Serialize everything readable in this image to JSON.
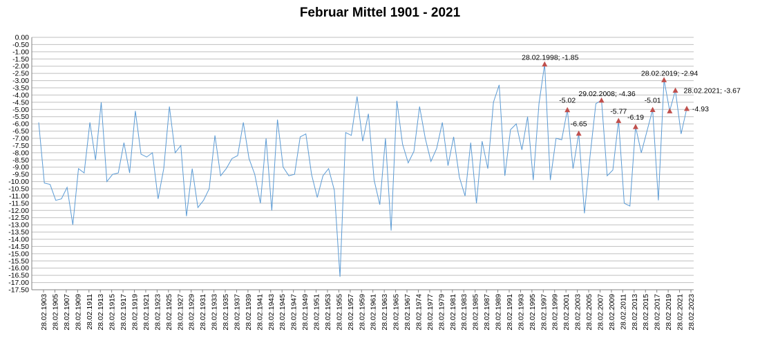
{
  "chart_data": {
    "type": "line",
    "title": "Februar Mittel 1901 - 2021",
    "xlabel": "",
    "ylabel": "",
    "ylim": [
      -17.5,
      0
    ],
    "ytick_labels": [
      "0.00",
      "-0.50",
      "-1.00",
      "-1.50",
      "-2.00",
      "-2.50",
      "-3.00",
      "-3.50",
      "-4.00",
      "-4.50",
      "-5.00",
      "-5.50",
      "-6.00",
      "-6.50",
      "-7.00",
      "-7.50",
      "-8.00",
      "-8.50",
      "-9.00",
      "-9.50",
      "-10.00",
      "-10.50",
      "-11.00",
      "-11.50",
      "-12.00",
      "-12.50",
      "-13.00",
      "-13.50",
      "-14.00",
      "-14.50",
      "-15.00",
      "-15.50",
      "-16.00",
      "-16.50",
      "-17.00",
      "-17.50"
    ],
    "xtick_labels": [
      "28.02.1903",
      "28.02.1905",
      "28.02.1907",
      "28.02.1909",
      "28.02.1911",
      "28.02.1913",
      "28.02.1915",
      "28.02.1917",
      "28.02.1919",
      "28.02.1921",
      "28.02.1923",
      "28.02.1925",
      "28.02.1927",
      "28.02.1929",
      "28.02.1931",
      "28.02.1933",
      "28.02.1935",
      "28.02.1937",
      "28.02.1939",
      "28.02.1941",
      "28.02.1943",
      "28.02.1945",
      "28.02.1947",
      "28.02.1949",
      "28.02.1951",
      "28.02.1953",
      "28.02.1955",
      "28.02.1957",
      "28.02.1959",
      "28.02.1961",
      "28.02.1963",
      "28.02.1965",
      "28.02.1967",
      "28.02.1974",
      "28.02.1977",
      "28.02.1979",
      "28.02.1981",
      "28.02.1983",
      "28.02.1985",
      "28.02.1987",
      "28.02.1989",
      "28.02.1991",
      "28.02.1993",
      "28.02.1995",
      "28.02.1997",
      "28.02.1999",
      "28.02.2001",
      "28.02.2003",
      "28.02.2005",
      "28.02.2007",
      "28.02.2009",
      "28.02.2011",
      "28.02.2013",
      "28.02.2015",
      "28.02.2017",
      "28.02.2019",
      "28.02.2021",
      "28.02.2023"
    ],
    "grid": true,
    "legend": "none",
    "line_color": "#5b9bd5",
    "marker_color": "#c0504d",
    "series": [
      {
        "values": [
          -5.9,
          -10.1,
          -10.2,
          -11.3,
          -11.2,
          -10.4,
          -13.0,
          -9.1,
          -9.4,
          -5.9,
          -8.5,
          -4.5,
          -10.0,
          -9.5,
          -9.4,
          -7.3,
          -9.4,
          -5.1,
          -8.1,
          -8.3,
          -8.0,
          -11.2,
          -9.1,
          -4.8,
          -8.0,
          -7.5,
          -12.4,
          -9.1,
          -11.8,
          -11.3,
          -10.5,
          -6.8,
          -9.6,
          -9.1,
          -8.4,
          -8.2,
          -5.9,
          -8.4,
          -9.5,
          -11.5,
          -7.0,
          -12.0,
          -5.7,
          -9.0,
          -9.6,
          -9.5,
          -6.9,
          -6.7,
          -9.5,
          -11.1,
          -9.6,
          -9.1,
          -10.6,
          -16.6,
          -6.6,
          -6.8,
          -4.1,
          -7.2,
          -5.3,
          -9.9,
          -11.6,
          -7.0,
          -13.4,
          -4.4,
          -7.4,
          -8.7,
          -7.9,
          -4.8,
          -7.0,
          -8.6,
          -7.7,
          -5.9,
          -8.9,
          -6.9,
          -9.7,
          -11.0,
          -7.3,
          -11.5,
          -7.2,
          -9.1,
          -4.5,
          -3.3,
          -9.6,
          -6.4,
          -6.0,
          -7.8,
          -5.5,
          -9.9,
          -4.6,
          -1.85,
          -9.9,
          -7.0,
          -7.1,
          -5.02,
          -9.1,
          -6.65,
          -12.2,
          -8.2,
          -4.6,
          -4.36,
          -9.6,
          -9.2,
          -5.77,
          -11.5,
          -11.7,
          -6.19,
          -8.0,
          -6.5,
          -5.01,
          -11.3,
          -2.94,
          -5.1,
          -3.67,
          -6.7,
          -4.93
        ]
      }
    ],
    "annotations": [
      {
        "index": 89,
        "y": -1.85,
        "label": "28.02.1998; -1.85"
      },
      {
        "index": 93,
        "y": -5.02,
        "label": "-5.02"
      },
      {
        "index": 95,
        "y": -6.65,
        "label": "-6.65"
      },
      {
        "index": 99,
        "y": -4.36,
        "label": "29.02.2008; -4.36"
      },
      {
        "index": 102,
        "y": -5.77,
        "label": "-5.77"
      },
      {
        "index": 105,
        "y": -6.19,
        "label": "-6.19"
      },
      {
        "index": 108,
        "y": -5.01,
        "label": "-5.01"
      },
      {
        "index": 110,
        "y": -2.94,
        "label": "28.02.2019; -2.94"
      },
      {
        "index": 111,
        "y": -5.1,
        "label": ""
      },
      {
        "index": 112,
        "y": -3.67,
        "label": "28.02.2021; -3.67"
      },
      {
        "index": 114,
        "y": -4.93,
        "label": "-4.93"
      }
    ]
  }
}
